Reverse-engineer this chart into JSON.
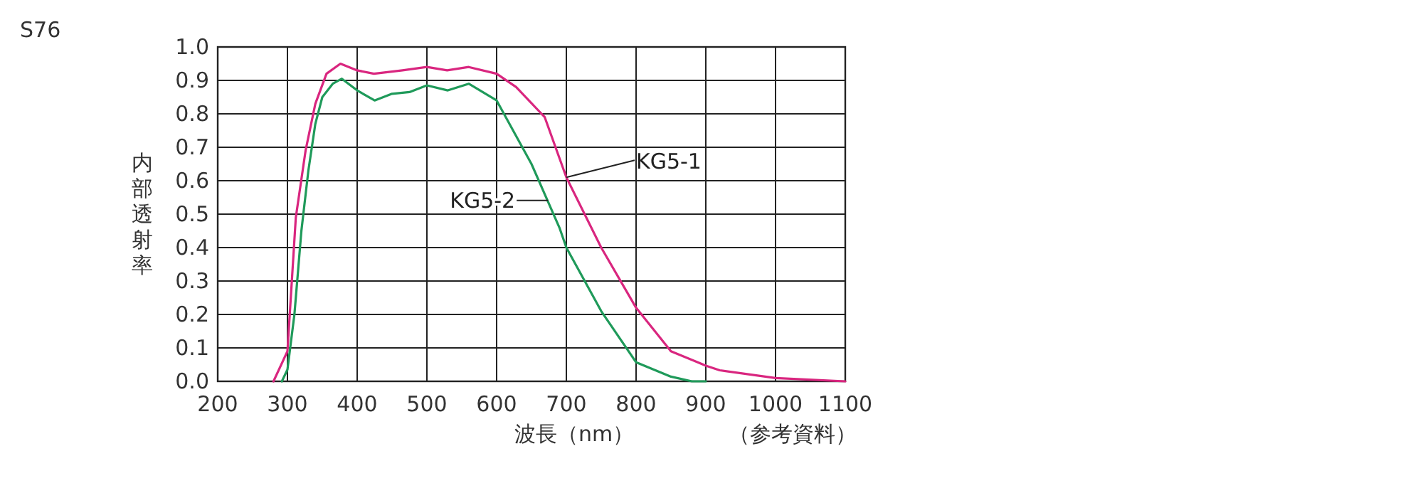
{
  "chart_data": {
    "type": "line",
    "xlabel": "波長（nm）",
    "ylabel": "内部透射率",
    "annotations": [
      "S76",
      "（参考資料）"
    ],
    "xlim": [
      200,
      1100
    ],
    "xticks": [
      200,
      300,
      400,
      500,
      600,
      700,
      800,
      900,
      1000,
      1100
    ],
    "ylim": [
      0,
      1
    ],
    "yticks": [
      {
        "value": 0,
        "label": "0.0"
      },
      {
        "value": 0.1,
        "label": "0.1"
      },
      {
        "value": 0.2,
        "label": "0.2"
      },
      {
        "value": 0.3,
        "label": "0.3"
      },
      {
        "value": 0.4,
        "label": "0.4"
      },
      {
        "value": 0.5,
        "label": "0.5"
      },
      {
        "value": 0.6,
        "label": "0.6"
      },
      {
        "value": 0.7,
        "label": "0.7"
      },
      {
        "value": 0.8,
        "label": "0.8"
      },
      {
        "value": 0.9,
        "label": "0.9"
      },
      {
        "value": 1,
        "label": "1.0"
      }
    ],
    "grid": true,
    "marker": "none",
    "line_style": "solid",
    "series": [
      {
        "name": "KG5-1",
        "color": "#d9267f",
        "x": [
          280,
          300,
          312,
          326,
          340,
          356,
          376,
          400,
          424,
          465,
          500,
          529,
          560,
          600,
          628,
          669,
          700,
          750,
          800,
          850,
          900,
          920,
          1000,
          1100
        ],
        "values": [
          0,
          0.09,
          0.49,
          0.69,
          0.83,
          0.92,
          0.95,
          0.93,
          0.92,
          0.93,
          0.94,
          0.93,
          0.94,
          0.92,
          0.88,
          0.79,
          0.61,
          0.4,
          0.22,
          0.09,
          0.047,
          0.033,
          0.01,
          0
        ]
      },
      {
        "name": "KG5-2",
        "color": "#1f9a5a",
        "x": [
          292,
          300,
          310,
          320,
          330,
          340,
          350,
          365,
          378,
          400,
          425,
          450,
          475,
          500,
          530,
          560,
          600,
          650,
          690,
          700,
          750,
          800,
          850,
          880,
          900
        ],
        "values": [
          0,
          0.035,
          0.2,
          0.45,
          0.63,
          0.77,
          0.85,
          0.89,
          0.905,
          0.87,
          0.84,
          0.86,
          0.865,
          0.885,
          0.87,
          0.89,
          0.84,
          0.65,
          0.46,
          0.4,
          0.21,
          0.057,
          0.014,
          0,
          0
        ]
      }
    ]
  }
}
